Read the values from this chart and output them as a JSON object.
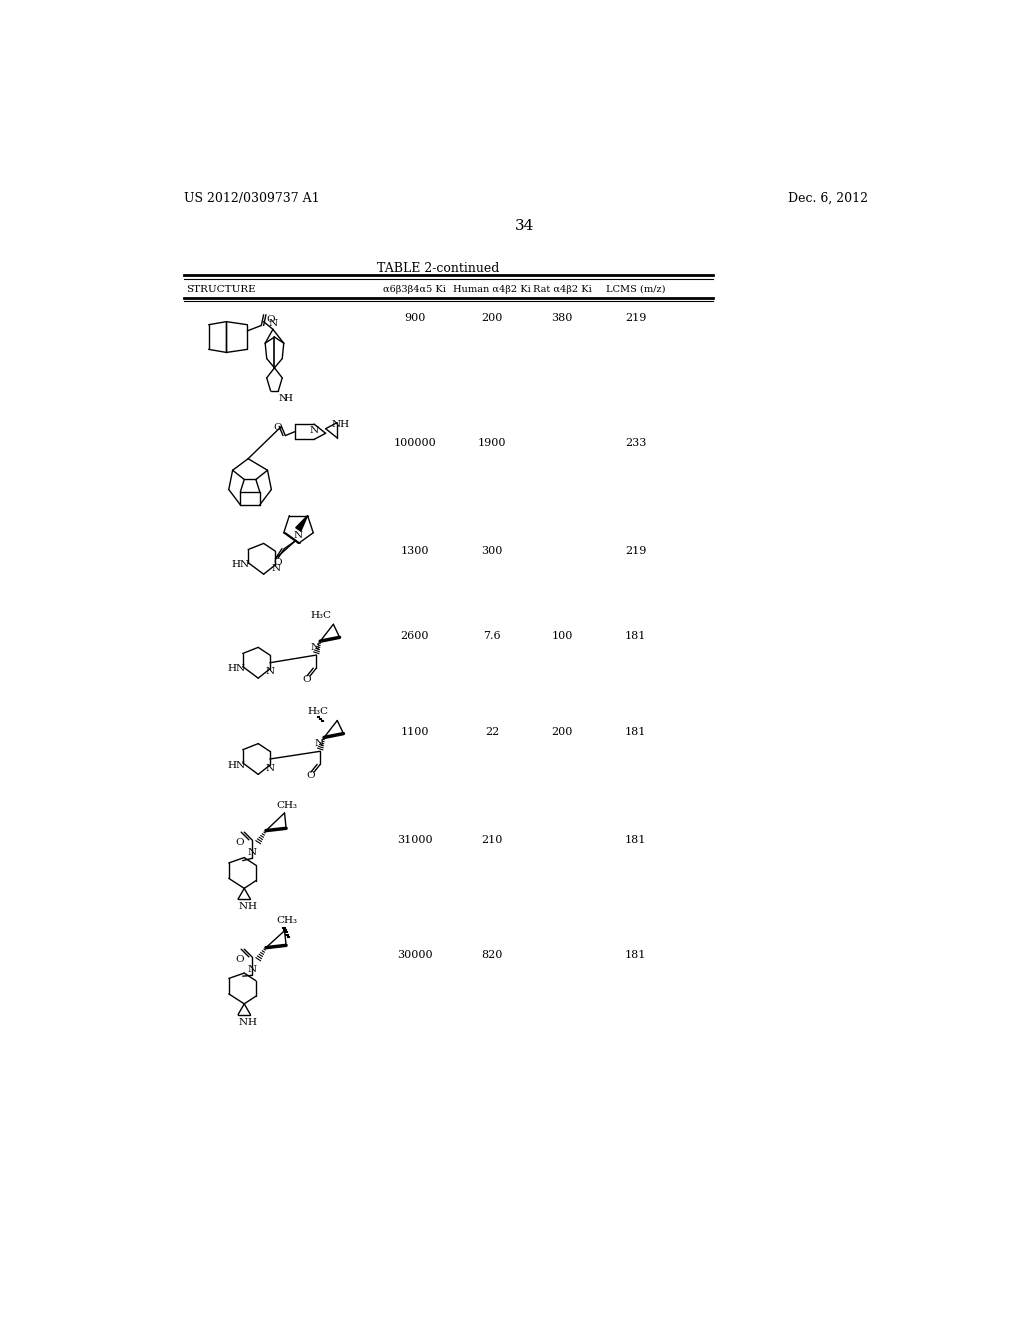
{
  "page_header_left": "US 2012/0309737 A1",
  "page_header_right": "Dec. 6, 2012",
  "page_number": "34",
  "table_title": "TABLE 2-continued",
  "col_header_structure": "STRUCTURE",
  "col_header_1": "α6β3β4α5 Ki",
  "col_header_2": "Human α4β2 Ki",
  "col_header_3": "Rat α4β2 Ki",
  "col_header_4": "LCMS (m/z)",
  "row_vals": [
    [
      "900",
      "200",
      "380",
      "219"
    ],
    [
      "100000",
      "1900",
      "",
      "233"
    ],
    [
      "1300",
      "300",
      "",
      "219"
    ],
    [
      "2600",
      "7.6",
      "100",
      "181"
    ],
    [
      "1100",
      "22",
      "200",
      "181"
    ],
    [
      "31000",
      "210",
      "",
      "181"
    ],
    [
      "30000",
      "820",
      "",
      "181"
    ]
  ],
  "background": "#ffffff",
  "text_color": "#000000"
}
